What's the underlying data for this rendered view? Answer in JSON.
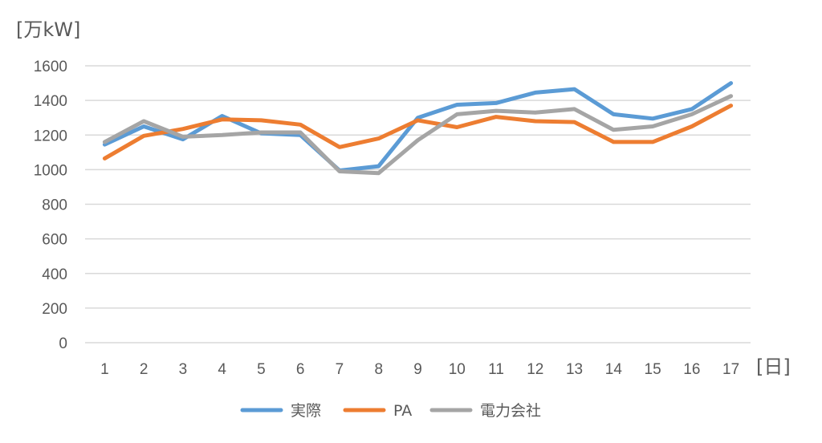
{
  "chart_data": {
    "type": "line",
    "title": "",
    "ylabel": "[万kW]",
    "xlabel": "[日]",
    "ylim": [
      0,
      1600
    ],
    "y_ticks": [
      0,
      200,
      400,
      600,
      800,
      1000,
      1200,
      1400,
      1600
    ],
    "categories": [
      "1",
      "2",
      "3",
      "4",
      "5",
      "6",
      "7",
      "8",
      "9",
      "10",
      "11",
      "12",
      "13",
      "14",
      "15",
      "16",
      "17"
    ],
    "grid": true,
    "legend_position": "bottom",
    "series": [
      {
        "name": "実際",
        "color": "#5b9bd5",
        "values": [
          1145,
          1250,
          1175,
          1310,
          1210,
          1200,
          995,
          1020,
          1300,
          1375,
          1385,
          1445,
          1465,
          1320,
          1295,
          1350,
          1500
        ]
      },
      {
        "name": "PA",
        "color": "#ed7d31",
        "values": [
          1065,
          1195,
          1235,
          1290,
          1285,
          1260,
          1130,
          1180,
          1285,
          1245,
          1305,
          1280,
          1275,
          1160,
          1160,
          1250,
          1370
        ]
      },
      {
        "name": "電力会社",
        "color": "#a5a5a5",
        "values": [
          1160,
          1280,
          1190,
          1200,
          1215,
          1215,
          990,
          980,
          1170,
          1320,
          1340,
          1330,
          1350,
          1230,
          1250,
          1320,
          1425
        ]
      }
    ]
  }
}
